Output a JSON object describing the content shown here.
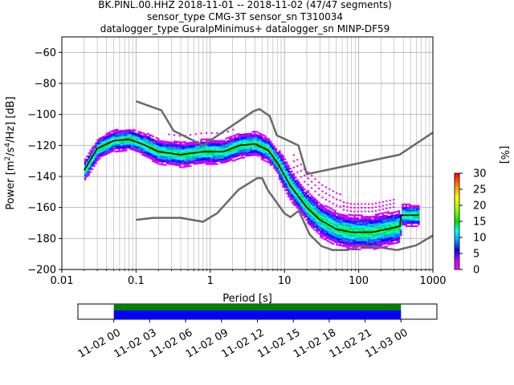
{
  "chart_data": {
    "type": "heatmap",
    "title_lines": [
      "BK.PINL.00.HHZ   2018-11-01 -- 2018-11-02  (47/47 segments)",
      "sensor_type CMG-3T sensor_sn T310034",
      "datalogger_type GuralpMinimus+ datalogger_sn MINP-DF59"
    ],
    "xlabel": "Period [s]",
    "ylabel_main": "Power [m",
    "ylabel_sup1": "2",
    "ylabel_mid": "/s",
    "ylabel_sup2": "4",
    "ylabel_tail": "/Hz] [dB]",
    "x_scale": "log",
    "xlim": [
      0.01,
      1000
    ],
    "ylim": [
      -200,
      -50
    ],
    "x_ticks": [
      {
        "value": 0.01,
        "label": "0.01"
      },
      {
        "value": 0.1,
        "label": "0.1"
      },
      {
        "value": 1,
        "label": "1"
      },
      {
        "value": 10,
        "label": "10"
      },
      {
        "value": 100,
        "label": "100"
      },
      {
        "value": 1000,
        "label": "1000"
      }
    ],
    "y_ticks": [
      {
        "value": -60,
        "label": "−60"
      },
      {
        "value": -80,
        "label": "−80"
      },
      {
        "value": -100,
        "label": "−100"
      },
      {
        "value": -120,
        "label": "−120"
      },
      {
        "value": -140,
        "label": "−140"
      },
      {
        "value": -160,
        "label": "−160"
      },
      {
        "value": -180,
        "label": "−180"
      },
      {
        "value": -200,
        "label": "−200"
      }
    ],
    "grid": true,
    "colorbar": {
      "label": "[%]",
      "range": [
        0,
        30
      ],
      "ticks": [
        {
          "value": 0,
          "label": "0"
        },
        {
          "value": 5,
          "label": "5"
        },
        {
          "value": 10,
          "label": "10"
        },
        {
          "value": 15,
          "label": "15"
        },
        {
          "value": 20,
          "label": "20"
        },
        {
          "value": 25,
          "label": "25"
        },
        {
          "value": 30,
          "label": "30"
        }
      ]
    },
    "noise_models": {
      "high": [
        [
          0.1,
          -91.5
        ],
        [
          0.22,
          -97.4
        ],
        [
          0.32,
          -110.5
        ],
        [
          0.8,
          -120
        ],
        [
          3.8,
          -98
        ],
        [
          4.6,
          -96.5
        ],
        [
          6.3,
          -101
        ],
        [
          7.9,
          -113.5
        ],
        [
          15.4,
          -120
        ],
        [
          20,
          -138.5
        ],
        [
          354.8,
          -126
        ],
        [
          10000,
          -80
        ]
      ],
      "low": [
        [
          0.1,
          -168
        ],
        [
          0.17,
          -166.7
        ],
        [
          0.4,
          -166.7
        ],
        [
          0.8,
          -169.2
        ],
        [
          1.24,
          -163.7
        ],
        [
          2.4,
          -148.6
        ],
        [
          4.3,
          -141.1
        ],
        [
          5,
          -141.1
        ],
        [
          6,
          -149
        ],
        [
          10,
          -163.8
        ],
        [
          12,
          -166.2
        ],
        [
          15.6,
          -162.1
        ],
        [
          21.9,
          -177.5
        ],
        [
          31.6,
          -185
        ],
        [
          45,
          -187.5
        ],
        [
          70,
          -187.5
        ],
        [
          101,
          -185
        ],
        [
          154,
          -185
        ],
        [
          328,
          -187.5
        ],
        [
          600,
          -184.4
        ],
        [
          1000,
          -178
        ]
      ]
    },
    "median_curve": [
      [
        0.02,
        -136
      ],
      [
        0.03,
        -122
      ],
      [
        0.05,
        -117
      ],
      [
        0.08,
        -116
      ],
      [
        0.12,
        -119
      ],
      [
        0.2,
        -124
      ],
      [
        0.4,
        -126
      ],
      [
        0.8,
        -124
      ],
      [
        1.5,
        -124
      ],
      [
        2.5,
        -120
      ],
      [
        4,
        -119
      ],
      [
        6,
        -123
      ],
      [
        8,
        -131
      ],
      [
        12,
        -146
      ],
      [
        20,
        -160
      ],
      [
        30,
        -168
      ],
      [
        50,
        -174
      ],
      [
        80,
        -176
      ],
      [
        150,
        -176
      ],
      [
        300,
        -173
      ],
      [
        360,
        -172
      ],
      [
        370,
        -165
      ],
      [
        650,
        -165
      ]
    ],
    "timeline": {
      "ticks": [
        "11-02 00",
        "11-02 03",
        "11-02 06",
        "11-02 09",
        "11-02 12",
        "11-02 15",
        "11-02 18",
        "11-02 21",
        "11-03 00"
      ],
      "range_hours": [
        -3,
        27
      ],
      "coverage_hours": [
        0,
        24
      ]
    },
    "colors": {
      "model_line": "#6a6a6a",
      "median_line": "#000000",
      "grid": "#b0b0b0",
      "timeline_data": "#0000ff",
      "timeline_gap_bar": "#008000"
    }
  }
}
